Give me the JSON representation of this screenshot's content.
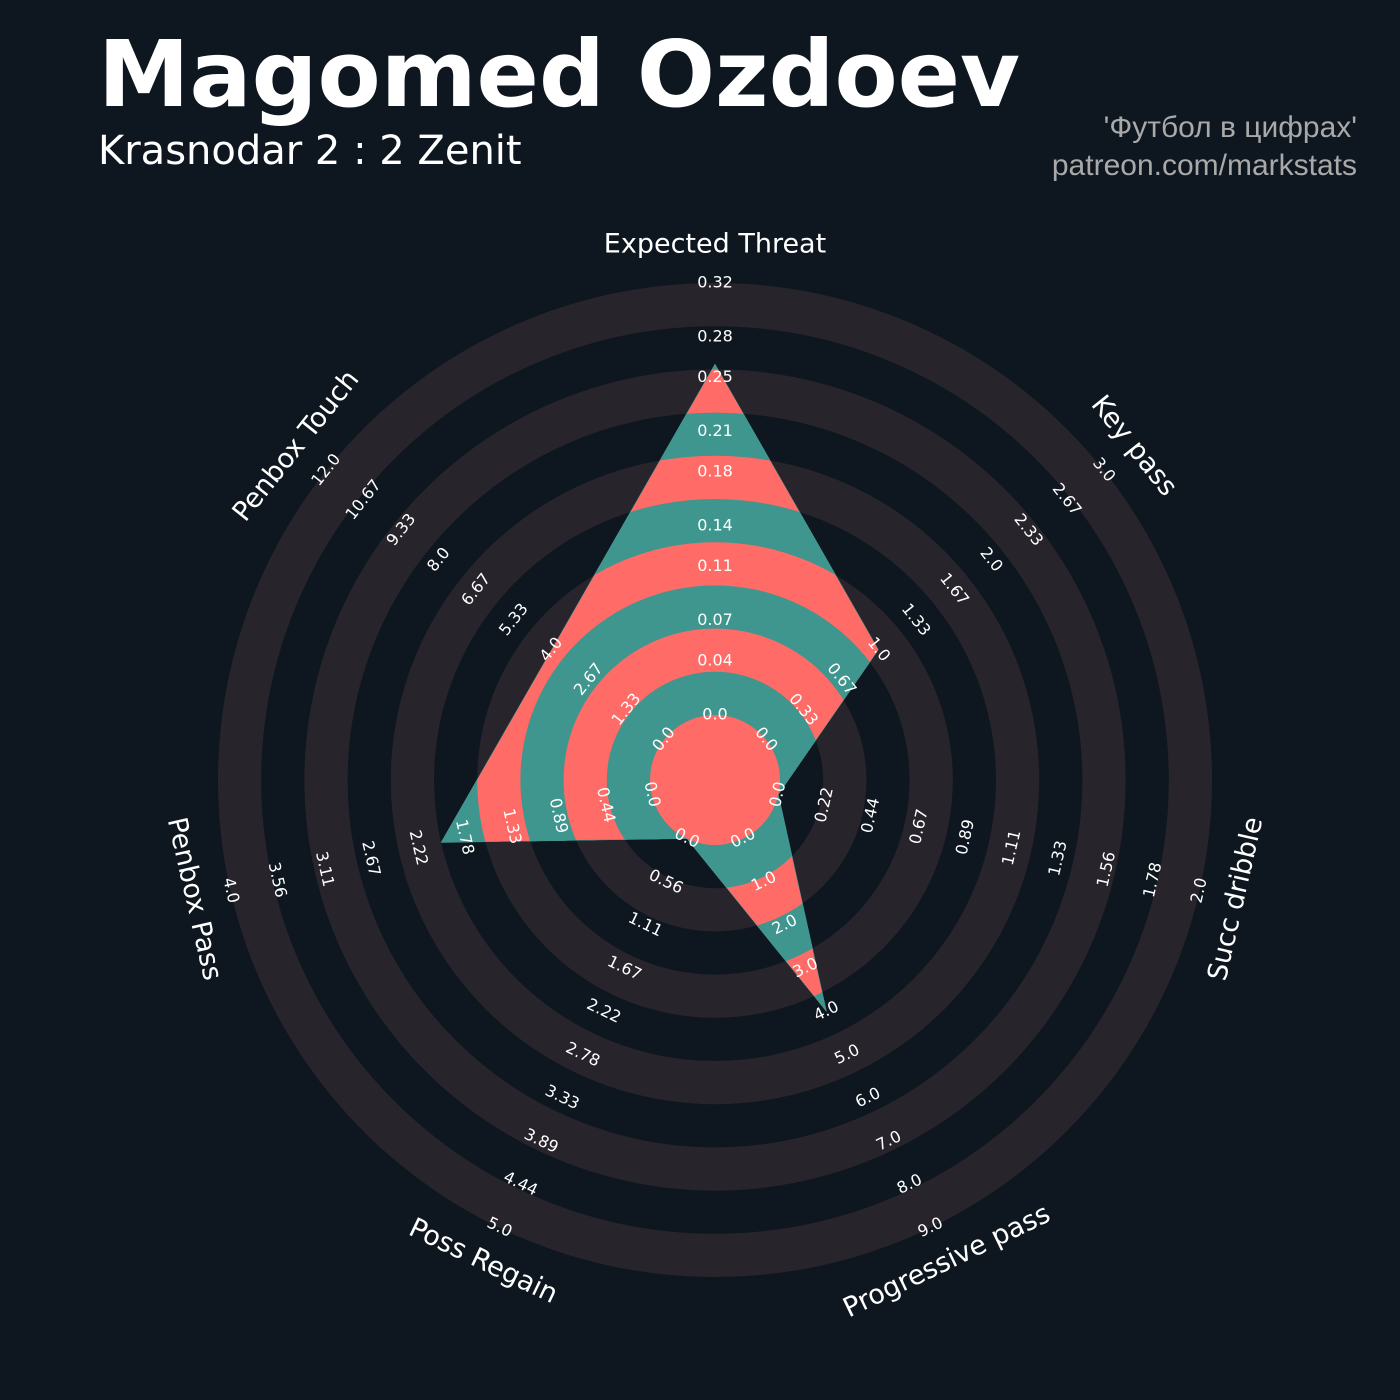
{
  "chart_data": {
    "type": "radar",
    "title": "Magomed Ozdoev",
    "subtitle": "Krasnodar 2 : 2 Zenit",
    "credits": [
      "'Футбол в цифрах'",
      "patreon.com/markstats"
    ],
    "categories": [
      "Expected Threat",
      "Key pass",
      "Succ dribble",
      "Progressive pass",
      "Poss Regain",
      "Penbox Pass",
      "Penbox Touch"
    ],
    "values": [
      0.26,
      1.0,
      0,
      4.0,
      0,
      2.0,
      4.0
    ],
    "ranges": [
      [
        0,
        0.32
      ],
      [
        0,
        3
      ],
      [
        0,
        2
      ],
      [
        0,
        9
      ],
      [
        0,
        5
      ],
      [
        0,
        4
      ],
      [
        0,
        12
      ]
    ],
    "ticks": [
      [
        {
          "value": 0,
          "label": "0.0"
        },
        0.04,
        0.07,
        0.11,
        0.14,
        0.18,
        0.21,
        0.25,
        0.28,
        0.32
      ],
      [
        {
          "value": 0,
          "label": "0.0"
        },
        0.33,
        0.67,
        {
          "value": 1,
          "label": "1.0"
        },
        1.33,
        1.67,
        {
          "value": 2,
          "label": "2.0"
        },
        2.33,
        2.67,
        {
          "value": 3,
          "label": "3.0"
        }
      ],
      [
        {
          "value": 0,
          "label": "0.0"
        },
        0.22,
        0.44,
        0.67,
        0.89,
        1.11,
        1.33,
        1.56,
        1.78,
        {
          "value": 2,
          "label": "2.0"
        }
      ],
      [
        {
          "value": 0,
          "label": "0.0"
        },
        {
          "value": 1,
          "label": "1.0"
        },
        {
          "value": 2,
          "label": "2.0"
        },
        {
          "value": 3,
          "label": "3.0"
        },
        {
          "value": 4,
          "label": "4.0"
        },
        {
          "value": 5,
          "label": "5.0"
        },
        {
          "value": 6,
          "label": "6.0"
        },
        {
          "value": 7,
          "label": "7.0"
        },
        {
          "value": 8,
          "label": "8.0"
        },
        {
          "value": 9,
          "label": "9.0"
        }
      ],
      [
        {
          "value": 0,
          "label": "0.0"
        },
        0.56,
        1.11,
        1.67,
        2.22,
        2.78,
        3.33,
        3.89,
        4.44,
        {
          "value": 5,
          "label": "5.0"
        }
      ],
      [
        {
          "value": 0,
          "label": "0.0"
        },
        0.44,
        0.89,
        1.33,
        1.78,
        2.22,
        2.67,
        3.11,
        3.56,
        {
          "value": 4,
          "label": "4.0"
        }
      ],
      [
        {
          "value": 0,
          "label": "0.0"
        },
        1.33,
        2.67,
        {
          "value": 4,
          "label": "4.0"
        },
        5.33,
        6.67,
        {
          "value": 8,
          "label": "8.0"
        },
        9.33,
        10.67,
        {
          "value": 12,
          "label": "12.0"
        }
      ]
    ],
    "colors": {
      "fill_a": "#ff6b67",
      "fill_b": "#3e968e",
      "ring": "#28242b",
      "background": "#0e1720"
    }
  }
}
